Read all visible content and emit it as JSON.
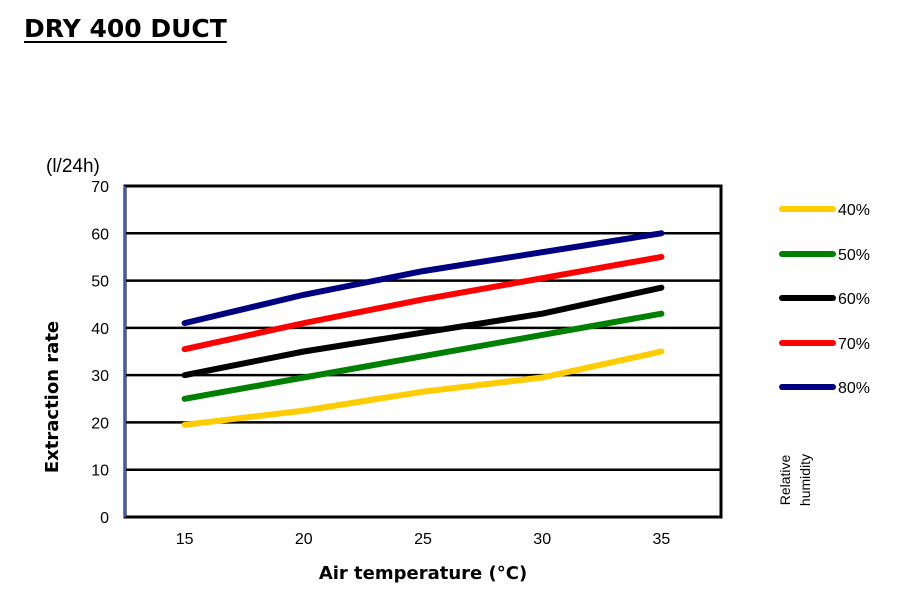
{
  "title": "DRY 400 DUCT",
  "chart_data": {
    "type": "line",
    "title": "DRY 400 DUCT",
    "xlabel": "Air temperature (°C)",
    "ylabel": "Extraction rate",
    "y_unit": "(l/24h)",
    "x": [
      15,
      20,
      25,
      30,
      35
    ],
    "x_tick_labels": [
      "15",
      "20",
      "25",
      "30",
      "35"
    ],
    "y_ticks": [
      0,
      10,
      20,
      30,
      40,
      50,
      60,
      70
    ],
    "y_tick_labels": [
      "0",
      "10",
      "20",
      "30",
      "40",
      "50",
      "60",
      "70"
    ],
    "xlim": [
      12.5,
      37.5
    ],
    "ylim": [
      0,
      70
    ],
    "grid": "horizontal",
    "legend_position": "right",
    "legend_title": "Relative humidity",
    "series": [
      {
        "name": "40%",
        "color": "#FFCC00",
        "values": [
          19.5,
          22.5,
          26.5,
          29.5,
          35
        ]
      },
      {
        "name": "50%",
        "color": "#008000",
        "values": [
          25,
          29.5,
          34,
          38.5,
          43
        ]
      },
      {
        "name": "60%",
        "color": "#000000",
        "values": [
          30,
          35,
          39,
          43,
          48.5
        ]
      },
      {
        "name": "70%",
        "color": "#FF0000",
        "values": [
          35.5,
          41,
          46,
          50.5,
          55
        ]
      },
      {
        "name": "80%",
        "color": "#000080",
        "values": [
          41,
          47,
          52,
          56,
          60
        ]
      }
    ]
  }
}
